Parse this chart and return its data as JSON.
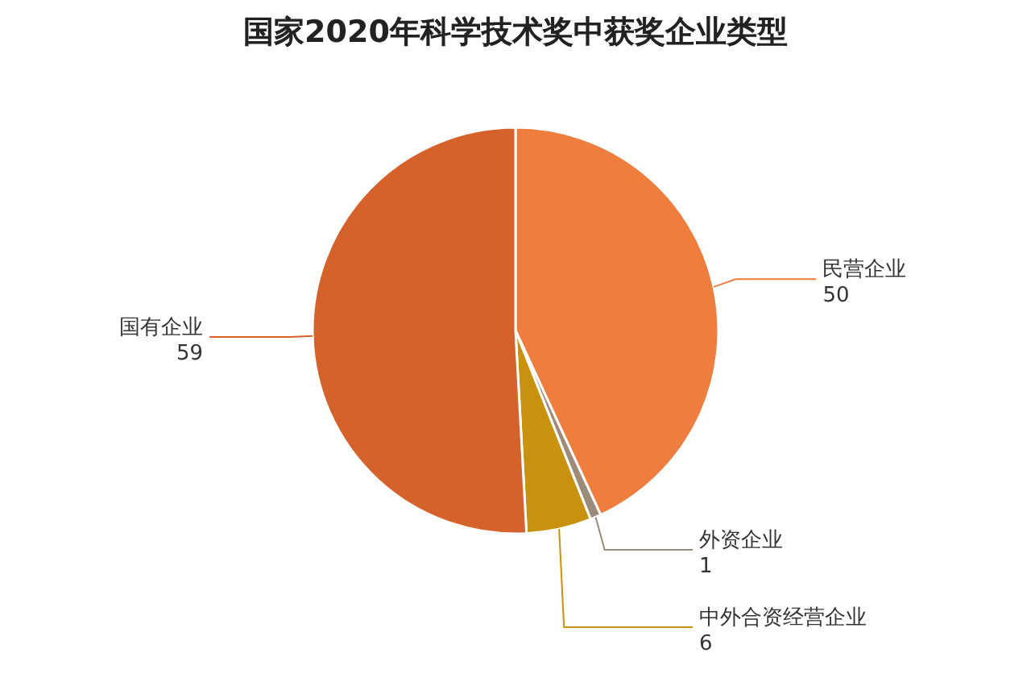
{
  "chart_data": {
    "type": "pie",
    "title": "国家2020年科学技术奖中获奖企业类型",
    "categories": [
      "民营企业",
      "外资企业",
      "中外合资经营企业",
      "国有企业"
    ],
    "values": [
      50,
      1,
      6,
      59
    ],
    "colors": [
      "#ee7d3e",
      "#9c8b78",
      "#c8920f",
      "#d4622a"
    ],
    "data_labels": true,
    "legend": false
  }
}
